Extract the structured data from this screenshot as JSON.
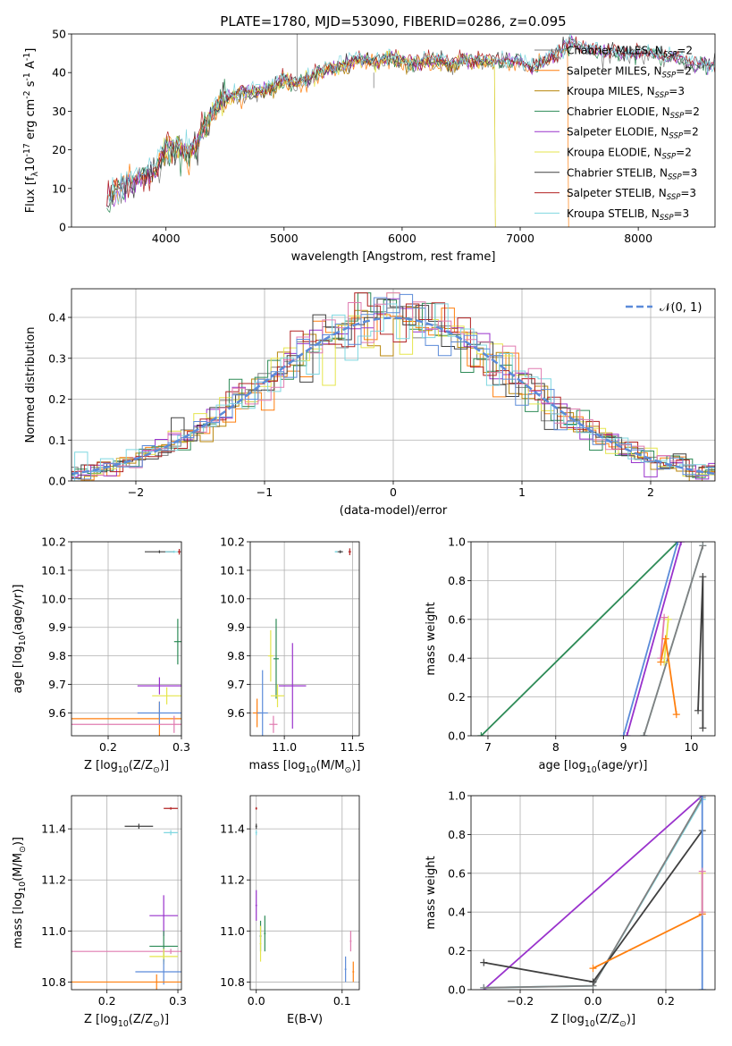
{
  "title": "PLATE=1780, MJD=53090, FIBERID=0286, z=0.095",
  "models": [
    {
      "label": "Chabrier MILES, N$_{SSP}$=2",
      "text": "Chabrier MILES, N",
      "nssp": "2",
      "color": "#808080"
    },
    {
      "label": "Salpeter MILES, N$_{SSP}$=2",
      "text": "Salpeter MILES, N",
      "nssp": "2",
      "color": "#ff7f0e"
    },
    {
      "label": "Kroupa MILES, N$_{SSP}$=3",
      "text": "Kroupa MILES, N",
      "nssp": "3",
      "color": "#b8860b"
    },
    {
      "label": "Chabrier ELODIE, N$_{SSP}$=2",
      "text": "Chabrier ELODIE, N",
      "nssp": "2",
      "color": "#2e8b57"
    },
    {
      "label": "Salpeter ELODIE, N$_{SSP}$=2",
      "text": "Salpeter ELODIE, N",
      "nssp": "2",
      "color": "#9932cc"
    },
    {
      "label": "Kroupa ELODIE, N$_{SSP}$=2",
      "text": "Kroupa ELODIE, N",
      "nssp": "2",
      "color": "#e5e54c"
    },
    {
      "label": "Chabrier STELIB, N$_{SSP}$=3",
      "text": "Chabrier STELIB, N",
      "nssp": "3",
      "color": "#404040"
    },
    {
      "label": "Salpeter STELIB, N$_{SSP}$=3",
      "text": "Salpeter STELIB, N",
      "nssp": "3",
      "color": "#b22222"
    },
    {
      "label": "Kroupa STELIB, N$_{SSP}$=3",
      "text": "Kroupa STELIB, N",
      "nssp": "3",
      "color": "#7fd7e0"
    }
  ],
  "chart_data": [
    {
      "id": "spectrum",
      "type": "line",
      "title": "PLATE=1780, MJD=53090, FIBERID=0286, z=0.095",
      "xlabel": "wavelength [Angstrom, rest frame]",
      "ylabel": "Flux [f$_\\lambda$10$^{-17}$ erg cm$^{-2}$ s$^{-1}$ A$^{-1}$]",
      "xlim": [
        3200,
        8650
      ],
      "ylim": [
        0,
        50
      ],
      "xticks": [
        4000,
        5000,
        6000,
        7000,
        8000
      ],
      "yticks": [
        0,
        10,
        20,
        30,
        40,
        50
      ],
      "grid": false,
      "legend": "right",
      "x": [
        3500,
        3600,
        3700,
        3800,
        3900,
        4000,
        4100,
        4200,
        4300,
        4400,
        4500,
        4600,
        4700,
        4800,
        4900,
        5000,
        5100,
        5200,
        5300,
        5400,
        5500,
        5600,
        5700,
        5800,
        5900,
        6000,
        6100,
        6200,
        6300,
        6400,
        6500,
        6600,
        6700,
        6800,
        6900,
        7000,
        7100,
        7200,
        7300,
        7400,
        7450,
        7500,
        7600,
        7700,
        7800,
        7900,
        8000,
        8100,
        8200,
        8300,
        8400,
        8500,
        8600
      ],
      "y": [
        7,
        10,
        12,
        13,
        14,
        20,
        21,
        19,
        24,
        30,
        33,
        34,
        35,
        35,
        36,
        38,
        37,
        38,
        40,
        41,
        42,
        43,
        43,
        43,
        44,
        43,
        42,
        43,
        43,
        42,
        43,
        43,
        43,
        43,
        43,
        43,
        41,
        43,
        45,
        47,
        48,
        46,
        46,
        45,
        45,
        45,
        45,
        45,
        44,
        44,
        43,
        42,
        42
      ]
    },
    {
      "id": "residuals",
      "type": "histogram",
      "xlabel": "(data-model)/error",
      "ylabel": "Normed distribution",
      "xlim": [
        -2.5,
        2.5
      ],
      "ylim": [
        0,
        0.47
      ],
      "xticks": [
        -2,
        -1,
        0,
        1,
        2
      ],
      "yticks": [
        0.0,
        0.1,
        0.2,
        0.3,
        0.4
      ],
      "grid": true,
      "legend": "top-right",
      "reference": {
        "label": "$\\mathcal{N}(0,1)$",
        "text": "𝒩(0, 1)",
        "mean": 0,
        "sigma": 1,
        "color": "#5b8bd9"
      },
      "bin_width": 0.1
    },
    {
      "id": "age-vs-Z",
      "type": "scatter",
      "xlabel": "Z [log$_{10}$(Z/Z$_\\odot$)]",
      "ylabel": "age  [log$_{10}$(age/yr)]",
      "xlim": [
        0.15,
        0.3
      ],
      "ylim": [
        9.52,
        10.2
      ],
      "xticks": [
        0.2,
        0.3
      ],
      "yticks": [
        9.6,
        9.7,
        9.8,
        9.9,
        10.0,
        10.1,
        10.2
      ],
      "grid": true,
      "points": [
        {
          "x": 0.27,
          "y": 10.165,
          "xerr": 0.02,
          "yerr": 0.005,
          "color": "#404040"
        },
        {
          "x": 0.29,
          "y": 10.165,
          "xerr": 0.012,
          "yerr": 0.004,
          "color": "#7fd7e0"
        },
        {
          "x": 0.297,
          "y": 10.165,
          "xerr": 0.002,
          "yerr": 0.01,
          "color": "#b22222"
        },
        {
          "x": 0.27,
          "y": 9.58,
          "xerr": 0.12,
          "yerr": 0.06,
          "color": "#ff7f0e"
        },
        {
          "x": 0.27,
          "y": 9.6,
          "xerr": 0.03,
          "yerr": 0.04,
          "color": "#5b8bd9"
        },
        {
          "x": 0.27,
          "y": 9.695,
          "xerr": 0.03,
          "yerr": 0.03,
          "color": "#9932cc"
        },
        {
          "x": 0.28,
          "y": 9.66,
          "xerr": 0.02,
          "yerr": 0.03,
          "color": "#e5e54c"
        },
        {
          "x": 0.295,
          "y": 9.85,
          "xerr": 0.005,
          "yerr": 0.08,
          "color": "#2e8b57"
        },
        {
          "x": 0.29,
          "y": 9.56,
          "xerr": 0.14,
          "yerr": 0.03,
          "color": "#e07bb0"
        }
      ]
    },
    {
      "id": "age-vs-mass",
      "type": "scatter",
      "xlabel": "mass [log$_{10}$(M/M$_\\odot$)]",
      "ylabel": "",
      "xlim": [
        10.75,
        11.55
      ],
      "ylim": [
        9.52,
        10.2
      ],
      "xticks": [
        11.0,
        11.5
      ],
      "yticks": [
        9.6,
        9.7,
        9.8,
        9.9,
        10.0,
        10.1,
        10.2
      ],
      "grid": true,
      "points": [
        {
          "x": 10.8,
          "y": 9.6,
          "xerr": 0.03,
          "yerr": 0.05,
          "color": "#ff7f0e"
        },
        {
          "x": 10.84,
          "y": 9.6,
          "xerr": 0.04,
          "yerr": 0.15,
          "color": "#5b8bd9"
        },
        {
          "x": 10.92,
          "y": 9.56,
          "xerr": 0.03,
          "yerr": 0.03,
          "color": "#e07bb0"
        },
        {
          "x": 10.9,
          "y": 9.8,
          "xerr": 0.02,
          "yerr": 0.09,
          "color": "#e5e54c"
        },
        {
          "x": 10.94,
          "y": 9.79,
          "xerr": 0.02,
          "yerr": 0.14,
          "color": "#2e8b57"
        },
        {
          "x": 11.06,
          "y": 9.695,
          "xerr": 0.1,
          "yerr": 0.15,
          "color": "#9932cc"
        },
        {
          "x": 10.95,
          "y": 9.66,
          "xerr": 0.05,
          "yerr": 0.04,
          "color": "#e5e54c"
        },
        {
          "x": 11.41,
          "y": 10.165,
          "xerr": 0.02,
          "yerr": 0.005,
          "color": "#404040"
        },
        {
          "x": 11.38,
          "y": 10.165,
          "xerr": 0.01,
          "yerr": 0.003,
          "color": "#7fd7e0"
        },
        {
          "x": 11.48,
          "y": 10.165,
          "xerr": 0.01,
          "yerr": 0.012,
          "color": "#b22222"
        }
      ]
    },
    {
      "id": "mass-weight-vs-age",
      "type": "line",
      "xlabel": "age  [log$_{10}$(age/yr)]",
      "ylabel": "mass weight",
      "xlim": [
        6.75,
        10.35
      ],
      "ylim": [
        0,
        1
      ],
      "xticks": [
        7,
        8,
        9,
        10
      ],
      "yticks": [
        0.0,
        0.2,
        0.4,
        0.6,
        0.8,
        1.0
      ],
      "grid": true,
      "series": [
        {
          "color": "#2e8b57",
          "x": [
            6.9,
            9.8
          ],
          "y": [
            0.0,
            1.0
          ]
        },
        {
          "color": "#5b8bd9",
          "x": [
            9.0,
            9.8
          ],
          "y": [
            0.0,
            1.0
          ]
        },
        {
          "color": "#9932cc",
          "x": [
            9.05,
            9.85
          ],
          "y": [
            0.0,
            1.0
          ]
        },
        {
          "color": "#7fd7e0",
          "x": [
            9.3,
            10.17
          ],
          "y": [
            0.0,
            0.98
          ]
        },
        {
          "color": "#808080",
          "x": [
            9.3,
            10.17
          ],
          "y": [
            0.0,
            0.98
          ]
        },
        {
          "color": "#e07bb0",
          "x": [
            9.55,
            9.6
          ],
          "y": [
            0.4,
            0.61
          ]
        },
        {
          "color": "#e5e54c",
          "x": [
            9.6,
            9.66
          ],
          "y": [
            0.38,
            0.6
          ]
        },
        {
          "color": "#ff7f0e",
          "x": [
            9.55,
            9.62,
            9.78
          ],
          "y": [
            0.38,
            0.5,
            0.11
          ]
        },
        {
          "color": "#404040",
          "x": [
            10.1,
            10.17,
            10.17
          ],
          "y": [
            0.13,
            0.82,
            0.04
          ]
        }
      ]
    },
    {
      "id": "mass-vs-Z",
      "type": "scatter",
      "xlabel": "Z [log$_{10}$(Z/Z$_\\odot$)]",
      "ylabel": "mass [log$_{10}$(M/M$_\\odot$)]",
      "xlim": [
        0.15,
        0.305
      ],
      "ylim": [
        10.77,
        11.53
      ],
      "xticks": [
        0.2,
        0.3
      ],
      "yticks": [
        10.8,
        11.0,
        11.2,
        11.4
      ],
      "grid": true,
      "points": [
        {
          "x": 0.29,
          "y": 11.48,
          "xerr": 0.01,
          "yerr": 0.005,
          "color": "#b22222"
        },
        {
          "x": 0.245,
          "y": 11.41,
          "xerr": 0.02,
          "yerr": 0.01,
          "color": "#404040"
        },
        {
          "x": 0.29,
          "y": 11.385,
          "xerr": 0.01,
          "yerr": 0.01,
          "color": "#7fd7e0"
        },
        {
          "x": 0.28,
          "y": 11.06,
          "xerr": 0.02,
          "yerr": 0.08,
          "color": "#9932cc"
        },
        {
          "x": 0.28,
          "y": 10.94,
          "xerr": 0.02,
          "yerr": 0.06,
          "color": "#2e8b57"
        },
        {
          "x": 0.29,
          "y": 10.92,
          "xerr": 0.14,
          "yerr": 0.01,
          "color": "#e07bb0"
        },
        {
          "x": 0.28,
          "y": 10.9,
          "xerr": 0.02,
          "yerr": 0.03,
          "color": "#e5e54c"
        },
        {
          "x": 0.28,
          "y": 10.84,
          "xerr": 0.04,
          "yerr": 0.05,
          "color": "#5b8bd9"
        },
        {
          "x": 0.27,
          "y": 10.8,
          "xerr": 0.12,
          "yerr": 0.03,
          "color": "#ff7f0e"
        }
      ]
    },
    {
      "id": "mass-vs-ebv",
      "type": "scatter",
      "xlabel": "E(B-V)",
      "ylabel": "",
      "xlim": [
        -0.007,
        0.12
      ],
      "ylim": [
        10.77,
        11.53
      ],
      "xticks": [
        0.0,
        0.1
      ],
      "yticks": [
        10.8,
        11.0,
        11.2,
        11.4
      ],
      "grid": true,
      "points": [
        {
          "x": 0.0,
          "y": 11.48,
          "xerr": 0.001,
          "yerr": 0.005,
          "color": "#b22222"
        },
        {
          "x": 0.0,
          "y": 11.41,
          "xerr": 0.001,
          "yerr": 0.01,
          "color": "#404040"
        },
        {
          "x": 0.0,
          "y": 11.385,
          "xerr": 0.001,
          "yerr": 0.01,
          "color": "#7fd7e0"
        },
        {
          "x": 0.0,
          "y": 11.1,
          "xerr": 0.001,
          "yerr": 0.06,
          "color": "#9932cc"
        },
        {
          "x": 0.005,
          "y": 10.98,
          "xerr": 0.001,
          "yerr": 0.06,
          "color": "#2e8b57"
        },
        {
          "x": 0.01,
          "y": 10.99,
          "xerr": 0.001,
          "yerr": 0.07,
          "color": "#2e8b57"
        },
        {
          "x": 0.005,
          "y": 10.95,
          "xerr": 0.001,
          "yerr": 0.07,
          "color": "#e5e54c"
        },
        {
          "x": 0.104,
          "y": 10.85,
          "xerr": 0.001,
          "yerr": 0.05,
          "color": "#5b8bd9"
        },
        {
          "x": 0.11,
          "y": 10.96,
          "xerr": 0.001,
          "yerr": 0.04,
          "color": "#e07bb0"
        },
        {
          "x": 0.113,
          "y": 10.84,
          "xerr": 0.001,
          "yerr": 0.04,
          "color": "#ff7f0e"
        }
      ]
    },
    {
      "id": "mass-weight-vs-Z",
      "type": "line",
      "xlabel": "Z [log$_{10}$(Z/Z$_\\odot$)]",
      "ylabel": "mass weight",
      "xlim": [
        -0.335,
        0.335
      ],
      "ylim": [
        0,
        1
      ],
      "xticks": [
        -0.2,
        0.0,
        0.2
      ],
      "yticks": [
        0.0,
        0.2,
        0.4,
        0.6,
        0.8,
        1.0
      ],
      "grid": true,
      "series": [
        {
          "color": "#9932cc",
          "x": [
            -0.3,
            0.3
          ],
          "y": [
            0.0,
            1.0
          ]
        },
        {
          "color": "#7fd7e0",
          "x": [
            -0.3,
            0.0,
            0.3
          ],
          "y": [
            0.01,
            0.02,
            0.98
          ]
        },
        {
          "color": "#808080",
          "x": [
            -0.3,
            0.0,
            0.3
          ],
          "y": [
            0.01,
            0.02,
            0.99
          ]
        },
        {
          "color": "#404040",
          "x": [
            -0.3,
            0.0,
            0.3
          ],
          "y": [
            0.14,
            0.04,
            0.82
          ]
        },
        {
          "color": "#ff7f0e",
          "x": [
            0.0,
            0.3
          ],
          "y": [
            0.11,
            0.39
          ]
        },
        {
          "color": "#5b8bd9",
          "x": [
            0.3,
            0.3
          ],
          "y": [
            0.0,
            1.0
          ]
        },
        {
          "color": "#e5e54c",
          "x": [
            0.3,
            0.3
          ],
          "y": [
            0.4,
            0.6
          ]
        },
        {
          "color": "#e07bb0",
          "x": [
            0.3,
            0.3
          ],
          "y": [
            0.4,
            0.61
          ]
        }
      ]
    }
  ]
}
